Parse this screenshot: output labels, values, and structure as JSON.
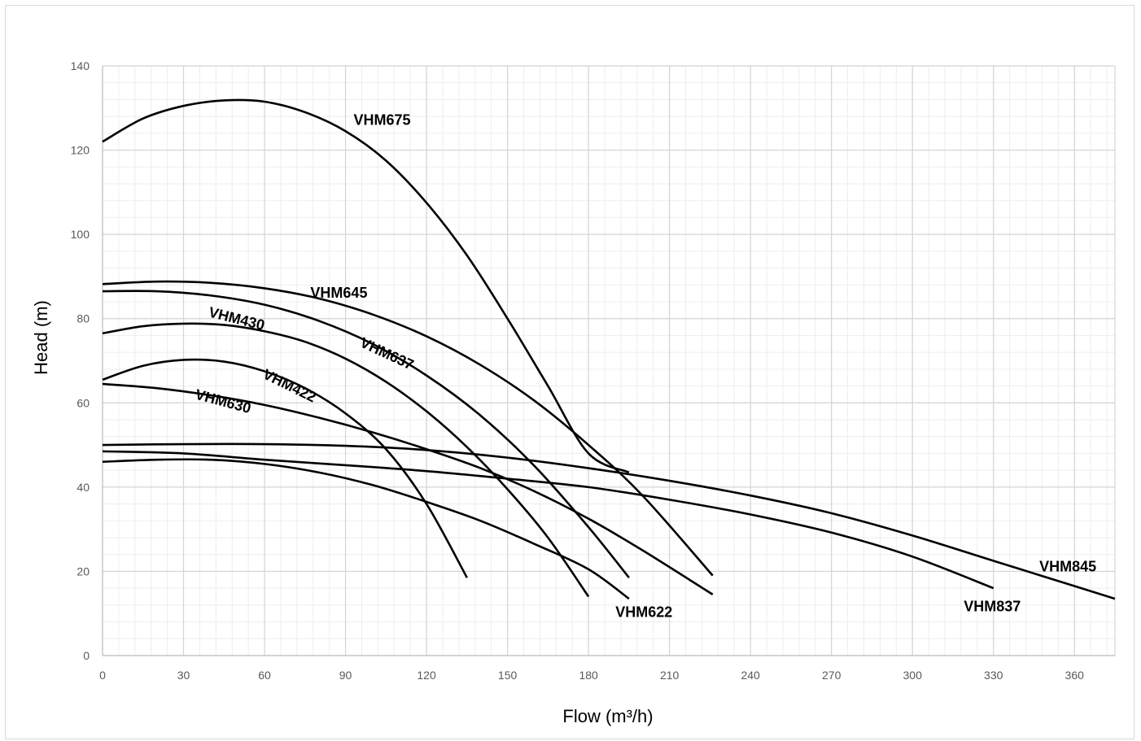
{
  "chart_data": {
    "type": "line",
    "title": "",
    "xlabel": "Flow (m³/h)",
    "ylabel": "Head (m)",
    "xlim": [
      0,
      375
    ],
    "ylim": [
      0,
      140
    ],
    "x_ticks": [
      0,
      30,
      60,
      90,
      120,
      150,
      180,
      210,
      240,
      270,
      300,
      330,
      360
    ],
    "y_ticks": [
      0,
      20,
      40,
      60,
      80,
      100,
      120,
      140
    ],
    "grid": true,
    "minor_grid": true,
    "legend": "none",
    "series": [
      {
        "name": "VHM675",
        "x": [
          0,
          15,
          30,
          45,
          60,
          75,
          90,
          105,
          120,
          135,
          150,
          165,
          180,
          195
        ],
        "y": [
          122,
          127.5,
          130.5,
          131.8,
          131.5,
          129,
          124.5,
          117.5,
          107.5,
          95,
          80,
          64,
          48,
          43.5
        ]
      },
      {
        "name": "VHM645",
        "x": [
          0,
          20,
          40,
          60,
          80,
          100,
          120,
          140,
          160,
          180,
          200,
          226
        ],
        "y": [
          88.2,
          88.8,
          88.5,
          87.2,
          84.8,
          81,
          75.8,
          69,
          60.5,
          50,
          38,
          19
        ]
      },
      {
        "name": "VHM637",
        "x": [
          0,
          20,
          40,
          60,
          80,
          100,
          120,
          140,
          160,
          180,
          195
        ],
        "y": [
          86.5,
          86.5,
          85.5,
          83.3,
          79.5,
          74,
          66.5,
          57,
          45,
          30.5,
          18.5
        ]
      },
      {
        "name": "VHM430",
        "x": [
          0,
          15,
          30,
          45,
          60,
          75,
          90,
          105,
          120,
          135,
          150,
          165,
          180
        ],
        "y": [
          76.5,
          78.2,
          78.8,
          78.5,
          77,
          74.5,
          70.5,
          65,
          58,
          49.5,
          39.5,
          28,
          14
        ]
      },
      {
        "name": "VHM422",
        "x": [
          0,
          15,
          30,
          45,
          60,
          75,
          90,
          105,
          120,
          135
        ],
        "y": [
          65.5,
          68.8,
          70.2,
          69.8,
          67.5,
          63.5,
          57.5,
          49,
          36,
          18.5
        ]
      },
      {
        "name": "VHM630",
        "x": [
          0,
          20,
          40,
          60,
          80,
          100,
          120,
          140,
          160,
          180,
          200,
          226
        ],
        "y": [
          64.5,
          63.5,
          61.8,
          59.5,
          56.5,
          53,
          49,
          44.5,
          39,
          32.5,
          25,
          14.5
        ]
      },
      {
        "name": "VHM622",
        "x": [
          0,
          20,
          40,
          60,
          80,
          100,
          120,
          140,
          160,
          180,
          195
        ],
        "y": [
          46,
          46.5,
          46.5,
          45.5,
          43.5,
          40.5,
          36.5,
          32,
          26.5,
          20.5,
          13.5
        ]
      },
      {
        "name": "VHM845",
        "x": [
          0,
          30,
          60,
          90,
          120,
          150,
          180,
          210,
          240,
          270,
          300,
          330,
          360,
          375
        ],
        "y": [
          50,
          50.2,
          50.2,
          49.8,
          48.8,
          47,
          44.5,
          41.5,
          38,
          33.8,
          28.5,
          22.5,
          16.5,
          13.5
        ]
      },
      {
        "name": "VHM837",
        "x": [
          0,
          30,
          60,
          90,
          120,
          150,
          180,
          210,
          240,
          270,
          300,
          330
        ],
        "y": [
          48.5,
          48,
          46.5,
          45.2,
          43.8,
          42,
          40,
          37,
          33.5,
          29.2,
          23.5,
          16
        ]
      }
    ],
    "annotations": [
      {
        "text": "VHM675",
        "x": 93,
        "y": 126,
        "rotate": 0
      },
      {
        "text": "VHM645",
        "x": 77,
        "y": 85,
        "rotate": 0
      },
      {
        "text": "VHM637",
        "x": 95,
        "y": 73.5,
        "rotate": 25
      },
      {
        "text": "VHM430",
        "x": 39,
        "y": 80.5,
        "rotate": 14
      },
      {
        "text": "VHM422",
        "x": 59,
        "y": 66,
        "rotate": 26
      },
      {
        "text": "VHM630",
        "x": 34,
        "y": 61,
        "rotate": 15
      },
      {
        "text": "VHM622",
        "x": 190,
        "y": 9.2,
        "rotate": 0
      },
      {
        "text": "VHM845",
        "x": 347,
        "y": 20,
        "rotate": 0
      },
      {
        "text": "VHM837",
        "x": 319,
        "y": 10.5,
        "rotate": 0
      }
    ]
  }
}
